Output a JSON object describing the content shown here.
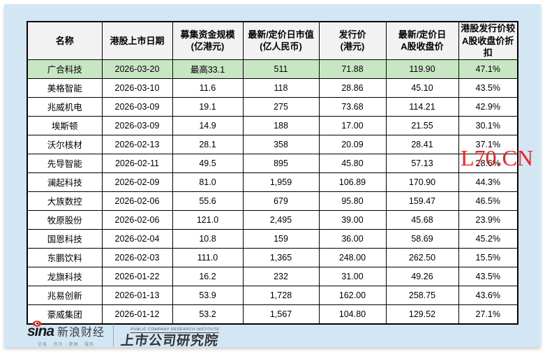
{
  "page": {
    "panel_color": "#d3e6f3",
    "header_fill": "#f2f2f2",
    "highlight_fill": "#c8e6c3",
    "watermark_color": "#fa1e1e"
  },
  "watermark": {
    "text": "L70.CN"
  },
  "table": {
    "header_lines": [
      [
        "名称"
      ],
      [
        "港股上市日期"
      ],
      [
        "募集资金规模",
        "(亿港元)"
      ],
      [
        "最新/定价日市值",
        "(亿人民币)"
      ],
      [
        "发行价",
        "(港元)"
      ],
      [
        "最新/定价日",
        "A股收盘价"
      ],
      [
        "港股发行价较",
        "A股收盘价折扣"
      ]
    ]
  },
  "chart_data": {
    "type": "table",
    "columns": [
      "名称",
      "港股上市日期",
      "募集资金规模(亿港元)",
      "最新/定价日市值(亿人民币)",
      "发行价(港元)",
      "最新/定价日A股收盘价",
      "港股发行价较A股收盘价折扣"
    ],
    "rows": [
      [
        "广合科技",
        "2026-03-20",
        "最高33.1",
        "511",
        "71.88",
        "119.90",
        "47.1%"
      ],
      [
        "美格智能",
        "2026-03-10",
        "11.6",
        "118",
        "28.86",
        "45.10",
        "43.5%"
      ],
      [
        "兆威机电",
        "2026-03-09",
        "19.1",
        "275",
        "73.68",
        "114.21",
        "42.9%"
      ],
      [
        "埃斯顿",
        "2026-03-09",
        "14.9",
        "188",
        "17.00",
        "21.55",
        "30.1%"
      ],
      [
        "沃尔核材",
        "2026-02-13",
        "28.1",
        "358",
        "20.09",
        "28.41",
        "37.1%"
      ],
      [
        "先导智能",
        "2026-02-11",
        "49.5",
        "895",
        "45.80",
        "57.13",
        "28.6%"
      ],
      [
        "澜起科技",
        "2026-02-09",
        "81.0",
        "1,959",
        "106.89",
        "170.90",
        "44.3%"
      ],
      [
        "大族数控",
        "2026-02-06",
        "55.6",
        "679",
        "95.80",
        "159.47",
        "46.5%"
      ],
      [
        "牧原股份",
        "2026-02-06",
        "121.0",
        "2,495",
        "39.00",
        "45.68",
        "23.9%"
      ],
      [
        "国恩科技",
        "2026-02-04",
        "10.8",
        "159",
        "36.00",
        "58.69",
        "45.2%"
      ],
      [
        "东鹏饮料",
        "2026-02-03",
        "111.0",
        "1,365",
        "248.00",
        "262.50",
        "15.5%"
      ],
      [
        "龙旗科技",
        "2026-01-22",
        "16.2",
        "232",
        "31.00",
        "49.26",
        "43.5%"
      ],
      [
        "兆易创新",
        "2026-01-13",
        "53.9",
        "1,728",
        "162.00",
        "258.75",
        "43.6%"
      ],
      [
        "豪威集团",
        "2026-01-12",
        "53.2",
        "1,567",
        "104.80",
        "129.52",
        "27.1%"
      ]
    ],
    "highlight_row": 0
  },
  "footer": {
    "sina_logo": "sina",
    "sina_brand": "新浪财经",
    "sina_tagline": "交易 · 资讯 · 数据 · 服务",
    "institute_en": "PUBLIC COMPANY RESEARCH INSTITUTE",
    "institute_name": "上市公司研究院"
  }
}
